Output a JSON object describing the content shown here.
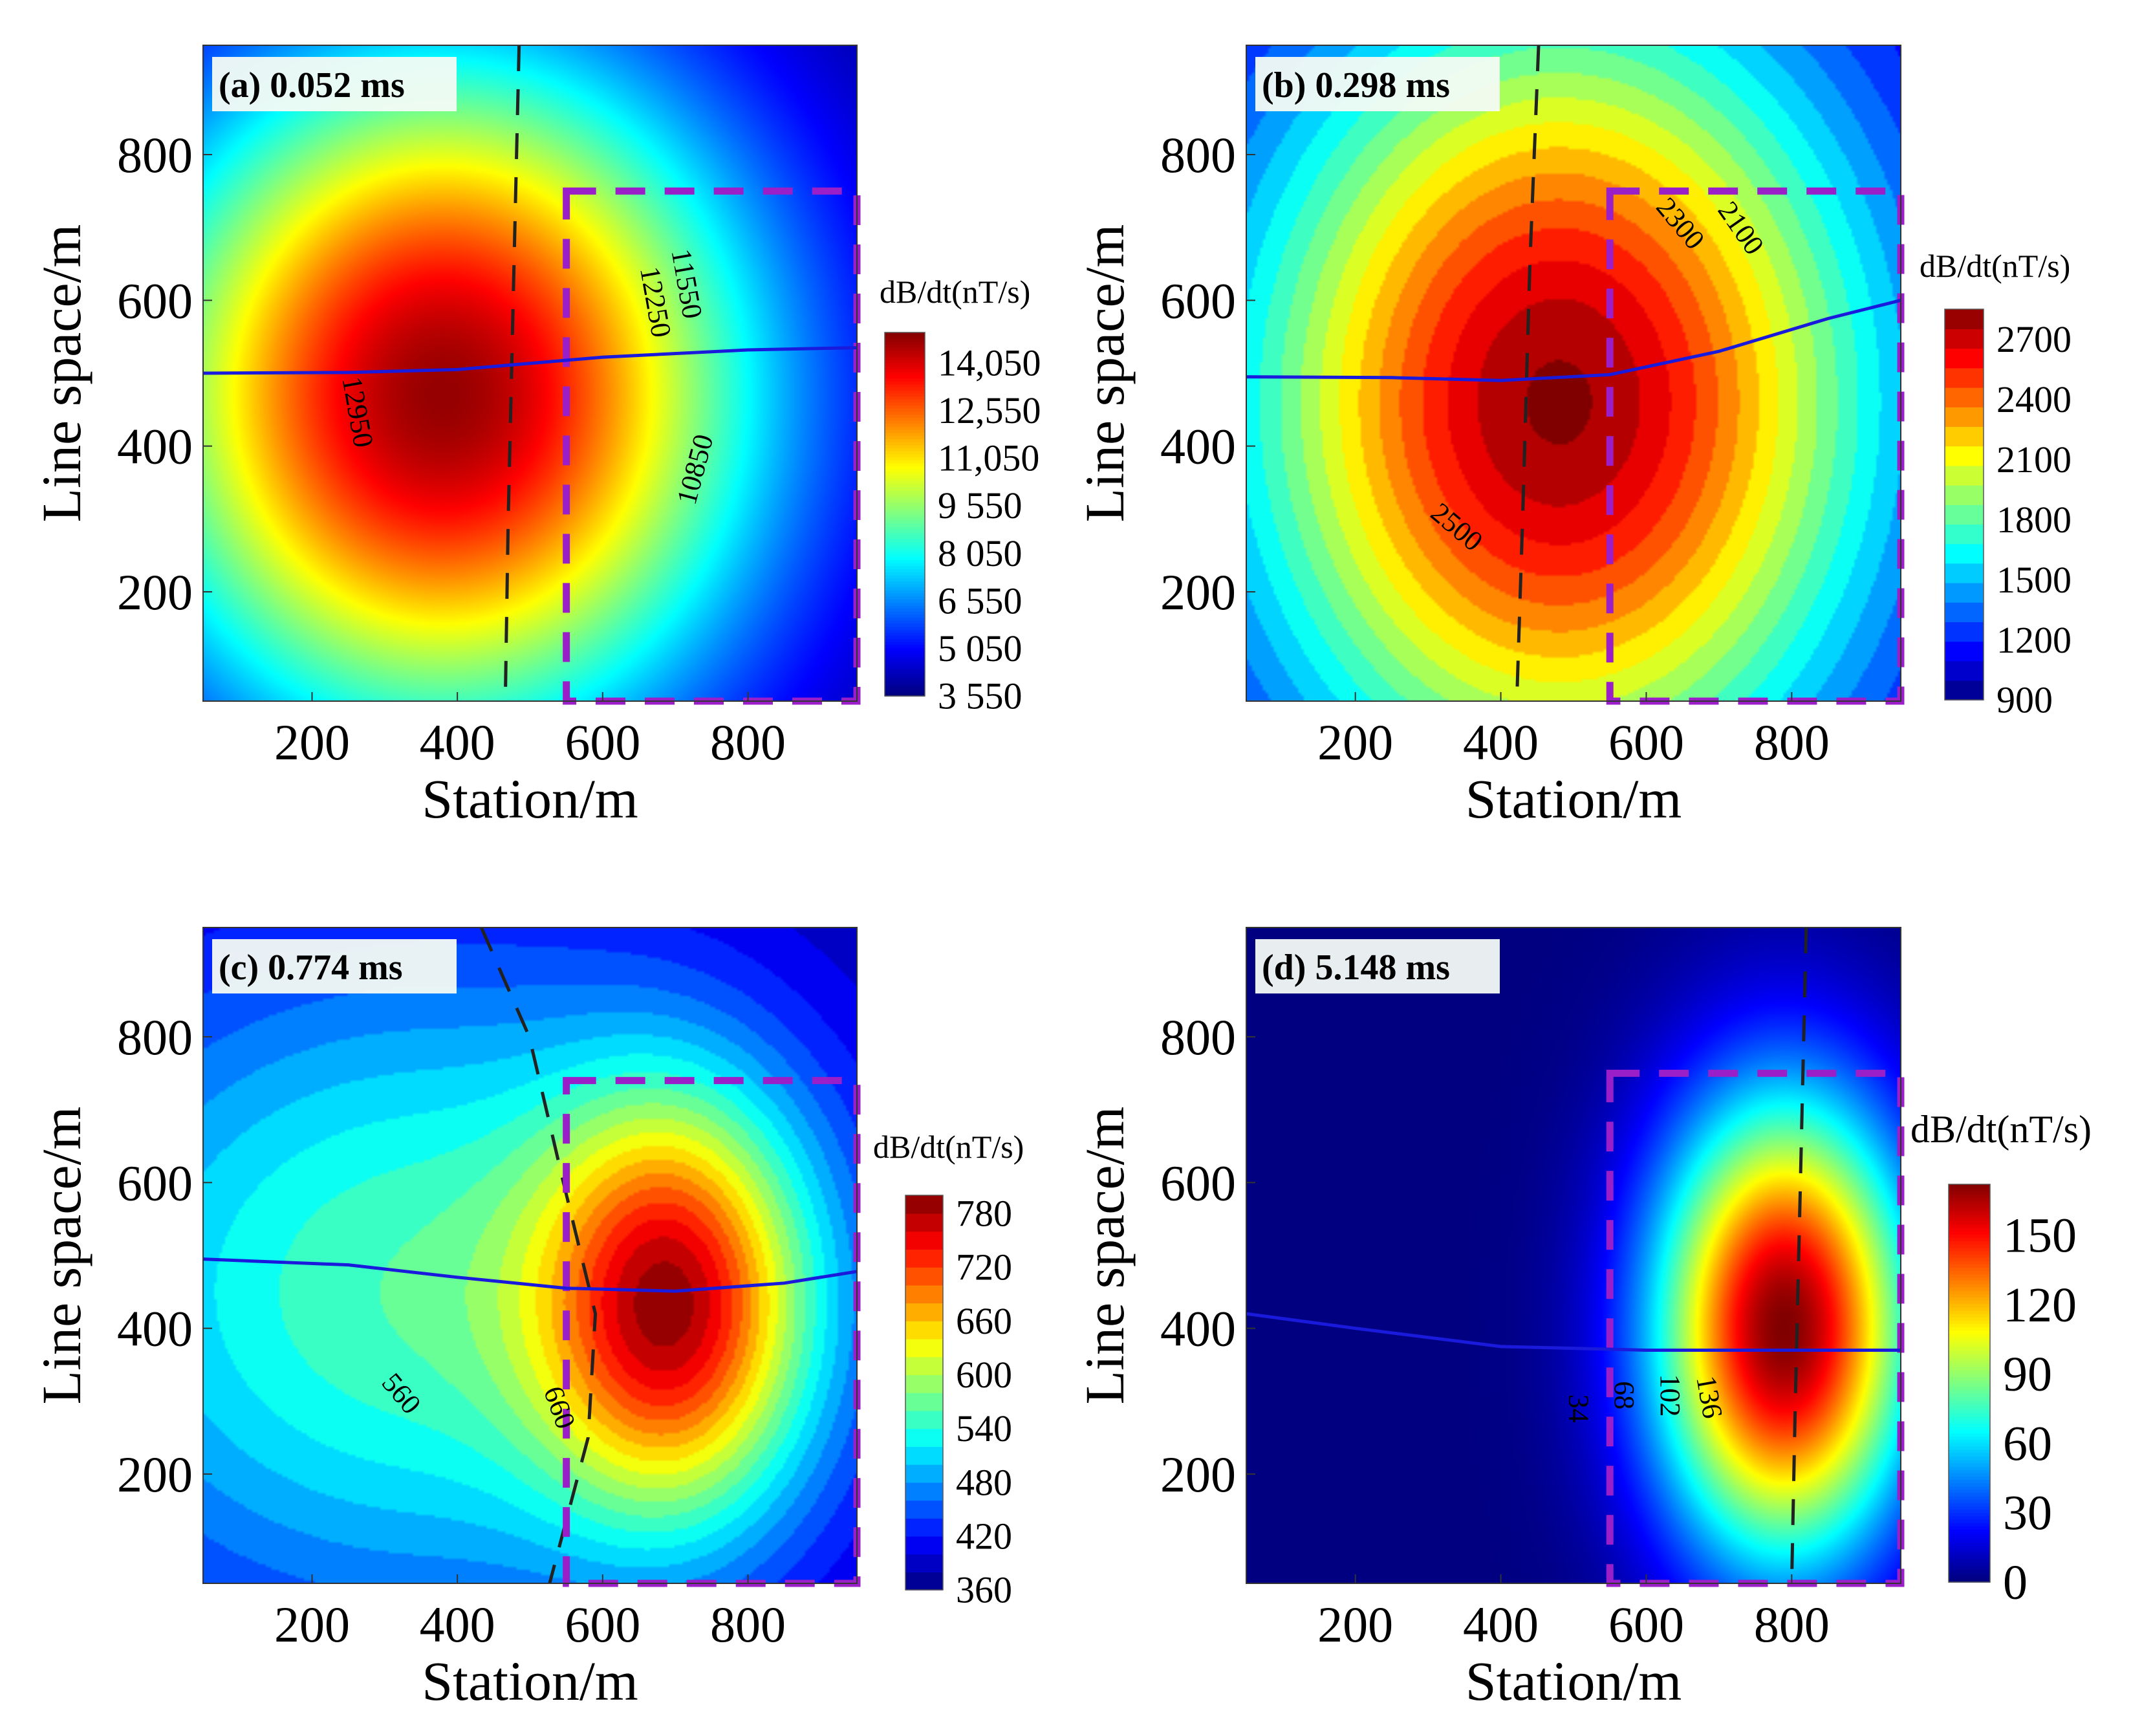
{
  "chart_data": [
    {
      "type": "heatmap",
      "title": "(a) 0.052 ms",
      "xlabel": "Station/m",
      "ylabel": "Line space/m",
      "xlim": [
        50,
        950
      ],
      "ylim": [
        50,
        950
      ],
      "xticks": [
        200,
        400,
        600,
        800
      ],
      "yticks": [
        200,
        400,
        600,
        800
      ],
      "colorbar": {
        "title": "dB/dt(nT/s)",
        "range": [
          3550,
          15000
        ],
        "ticks": [
          3550,
          5050,
          6550,
          8050,
          9550,
          11050,
          12550,
          14050
        ],
        "tick_labels": [
          "3 550",
          "5 050",
          "6 550",
          "8 050",
          "9 550",
          "11,050",
          "12,550",
          "14,050"
        ],
        "banded": false
      },
      "field": {
        "base": 3550,
        "components": [
          {
            "cx": 380,
            "cy": 470,
            "sx": 430,
            "sy": 470,
            "amp": 11200
          }
        ]
      },
      "profile_line": [
        [
          50,
          500
        ],
        [
          250,
          501
        ],
        [
          400,
          505
        ],
        [
          600,
          522
        ],
        [
          800,
          532
        ],
        [
          950,
          535
        ]
      ],
      "dashed_line": [
        [
          485,
          950
        ],
        [
          478,
          650
        ],
        [
          470,
          300
        ],
        [
          466,
          50
        ]
      ],
      "target_box": {
        "x": [
          550,
          950
        ],
        "y": [
          50,
          750
        ]
      },
      "contour_labels": [
        {
          "text": "12950",
          "x": 259,
          "y": 446
        },
        {
          "text": "11550",
          "x": 712,
          "y": 622
        },
        {
          "text": "12250",
          "x": 669,
          "y": 597
        },
        {
          "text": "10850",
          "x": 731,
          "y": 367
        }
      ]
    },
    {
      "type": "heatmap",
      "title": "(b) 0.298 ms",
      "xlabel": "Station/m",
      "ylabel": "Line space/m",
      "xlim": [
        50,
        950
      ],
      "ylim": [
        50,
        950
      ],
      "xticks": [
        200,
        400,
        600,
        800
      ],
      "yticks": [
        200,
        400,
        600,
        800
      ],
      "colorbar": {
        "title": "dB/dt(nT/s)",
        "range": [
          900,
          2850
        ],
        "ticks": [
          900,
          1200,
          1500,
          1800,
          2100,
          2400,
          2700
        ],
        "tick_labels": [
          "900",
          "1200",
          "1500",
          "1800",
          "2100",
          "2400",
          "2700"
        ],
        "banded": true,
        "band_step": 100
      },
      "field": {
        "base": 900,
        "components": [
          {
            "cx": 480,
            "cy": 460,
            "sx": 440,
            "sy": 560,
            "amp": 1920
          }
        ]
      },
      "profile_line": [
        [
          50,
          495
        ],
        [
          250,
          494
        ],
        [
          400,
          490
        ],
        [
          550,
          498
        ],
        [
          700,
          530
        ],
        [
          850,
          575
        ],
        [
          950,
          600
        ]
      ],
      "dashed_line": [
        [
          452,
          950
        ],
        [
          440,
          650
        ],
        [
          430,
          300
        ],
        [
          422,
          50
        ]
      ],
      "target_box": {
        "x": [
          550,
          950
        ],
        "y": [
          50,
          750
        ]
      },
      "contour_labels": [
        {
          "text": "2500",
          "x": 337,
          "y": 286
        },
        {
          "text": "2300",
          "x": 644,
          "y": 703
        },
        {
          "text": "2100",
          "x": 727,
          "y": 697
        }
      ]
    },
    {
      "type": "heatmap",
      "title": "(c) 0.774 ms",
      "xlabel": "Station/m",
      "ylabel": "Line space/m",
      "xlim": [
        50,
        950
      ],
      "ylim": [
        50,
        950
      ],
      "xticks": [
        200,
        400,
        600,
        800
      ],
      "yticks": [
        200,
        400,
        600,
        800
      ],
      "colorbar": {
        "title": "dB/dt(nT/s)",
        "range": [
          360,
          800
        ],
        "ticks": [
          360,
          420,
          480,
          540,
          600,
          660,
          720,
          780
        ],
        "tick_labels": [
          "360",
          "420",
          "480",
          "540",
          "600",
          "660",
          "720",
          "780"
        ],
        "banded": true,
        "band_step": 20
      },
      "field": {
        "base": 360,
        "components": [
          {
            "cx": 350,
            "cy": 450,
            "sx": 600,
            "sy": 500,
            "amp": 200
          },
          {
            "cx": 700,
            "cy": 430,
            "sx": 180,
            "sy": 280,
            "amp": 290
          }
        ]
      },
      "profile_line": [
        [
          50,
          495
        ],
        [
          250,
          487
        ],
        [
          400,
          470
        ],
        [
          550,
          455
        ],
        [
          700,
          451
        ],
        [
          850,
          462
        ],
        [
          950,
          478
        ]
      ],
      "dashed_line": [
        [
          433,
          950
        ],
        [
          499,
          800
        ],
        [
          546,
          600
        ],
        [
          590,
          420
        ],
        [
          580,
          250
        ],
        [
          527,
          50
        ]
      ],
      "target_box": {
        "x": [
          550,
          950
        ],
        "y": [
          50,
          740
        ]
      },
      "contour_labels": [
        {
          "text": "560",
          "x": 320,
          "y": 308
        },
        {
          "text": "660",
          "x": 537,
          "y": 290
        }
      ]
    },
    {
      "type": "heatmap",
      "title": "(d) 5.148 ms",
      "xlabel": "Station/m",
      "ylabel": "Line space/m",
      "xlim": [
        50,
        950
      ],
      "ylim": [
        50,
        950
      ],
      "xticks": [
        200,
        400,
        600,
        800
      ],
      "yticks": [
        200,
        400,
        600,
        800
      ],
      "colorbar": {
        "title": "dB/dt(nT/s)",
        "range": [
          0,
          172
        ],
        "ticks": [
          0,
          30,
          60,
          90,
          120,
          150
        ],
        "tick_labels": [
          "0",
          "30",
          "60",
          "90",
          "120",
          "150"
        ],
        "banded": false
      },
      "field": {
        "base": 0,
        "components": [
          {
            "cx": 790,
            "cy": 400,
            "sx": 175,
            "sy": 310,
            "amp": 172
          }
        ]
      },
      "profile_line": [
        [
          50,
          420
        ],
        [
          200,
          400
        ],
        [
          400,
          375
        ],
        [
          600,
          370
        ],
        [
          800,
          370
        ],
        [
          950,
          370
        ]
      ],
      "dashed_line": [
        [
          820,
          950
        ],
        [
          812,
          600
        ],
        [
          805,
          300
        ],
        [
          800,
          50
        ]
      ],
      "target_box": {
        "x": [
          550,
          950
        ],
        "y": [
          50,
          750
        ]
      },
      "contour_labels": [
        {
          "text": "34",
          "x": 503,
          "y": 290
        },
        {
          "text": "68",
          "x": 566,
          "y": 308
        },
        {
          "text": "102",
          "x": 629,
          "y": 308
        },
        {
          "text": "136",
          "x": 683,
          "y": 305
        }
      ]
    }
  ],
  "colors": {
    "profile_line": "#1a1adc",
    "dashed_line": "#222222",
    "target_box": "#9b1fc8"
  }
}
